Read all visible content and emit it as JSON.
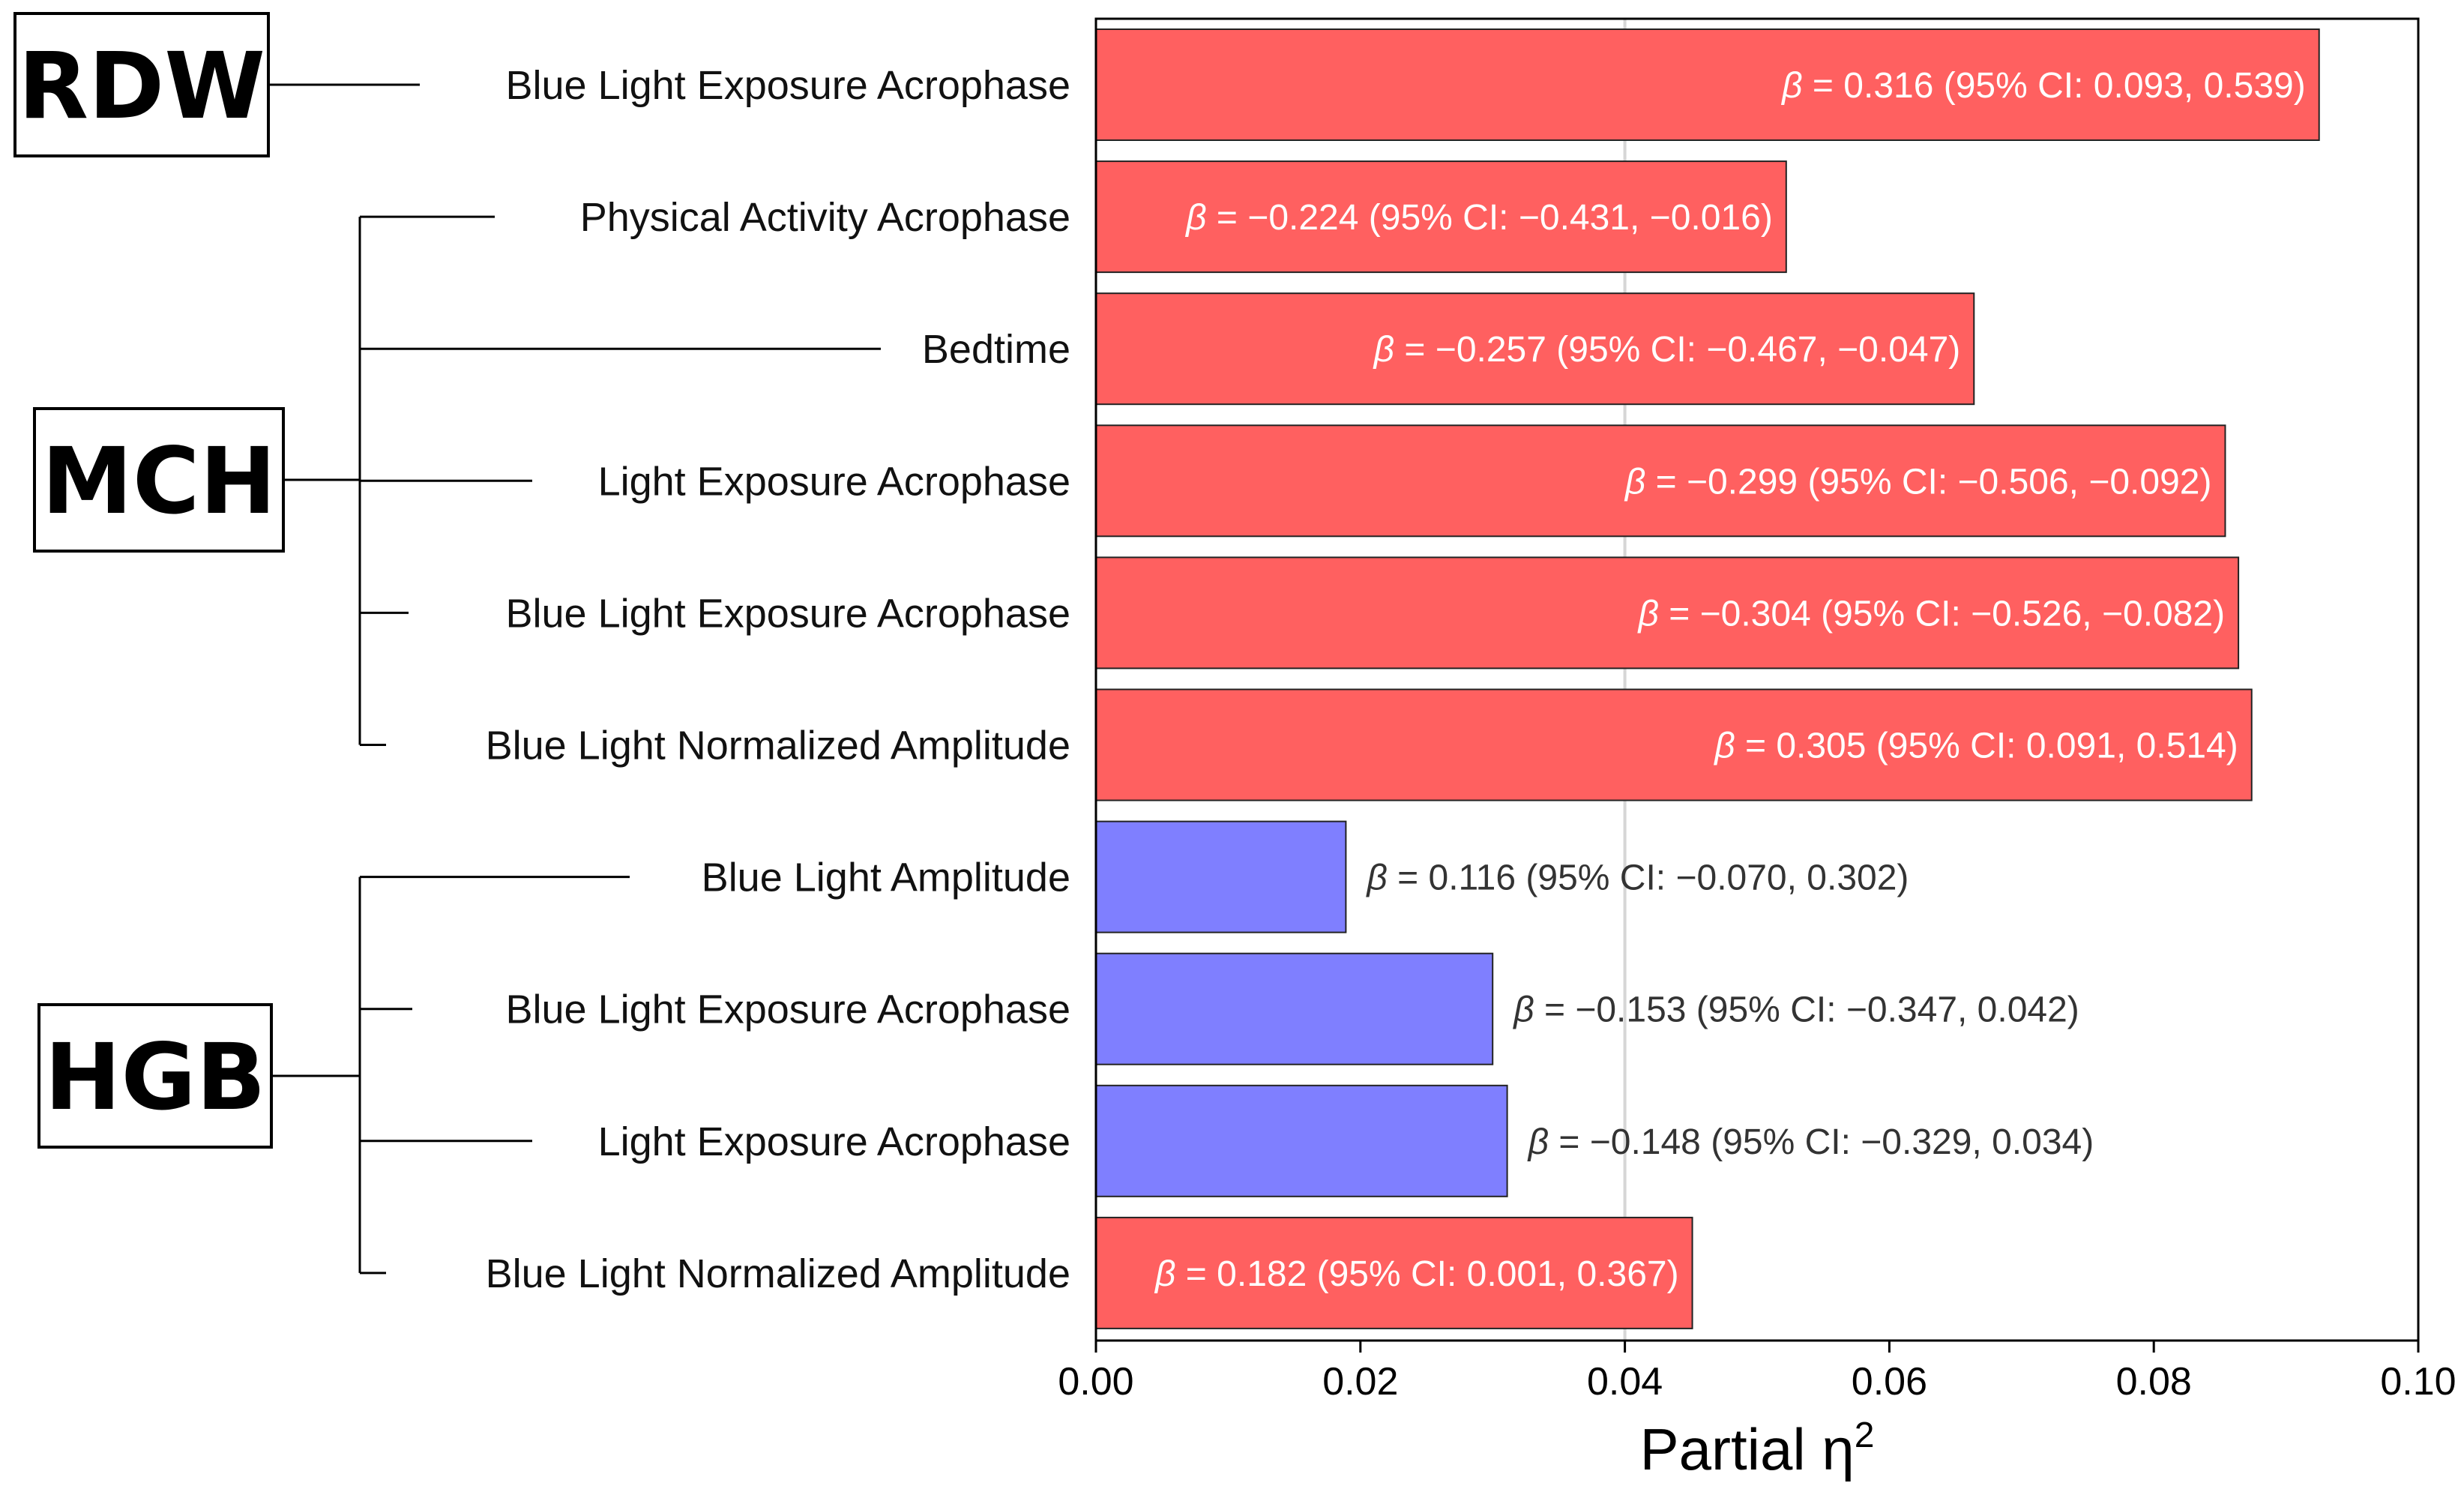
{
  "chart_data": {
    "type": "bar",
    "orientation": "horizontal",
    "xlabel": "Partial η²",
    "xlabel_base": "Partial η",
    "xlabel_sup": "2",
    "xlim": [
      0.0,
      0.1
    ],
    "xticks": [
      "0.00",
      "0.02",
      "0.04",
      "0.06",
      "0.08",
      "0.10"
    ],
    "reference_line": 0.04,
    "beta_symbol": "β",
    "colors": {
      "positive_sig": "#ff6060",
      "nonsig": "#7f7fff"
    },
    "groups": [
      {
        "name": "RDW",
        "rows": [
          0
        ]
      },
      {
        "name": "MCH",
        "rows": [
          1,
          2,
          3,
          4,
          5
        ]
      },
      {
        "name": "HGB",
        "rows": [
          6,
          7,
          8,
          9
        ]
      }
    ],
    "rows": [
      {
        "group": "RDW",
        "label": "Blue Light Exposure Acrophase",
        "value": 0.0925,
        "color": "red",
        "annotation": " = 0.316 (95% CI: 0.093, 0.539)"
      },
      {
        "group": "MCH",
        "label": "Physical Activity Acrophase",
        "value": 0.0522,
        "color": "red",
        "annotation": " = −0.224 (95% CI: −0.431, −0.016)"
      },
      {
        "group": "MCH",
        "label": "Bedtime",
        "value": 0.0664,
        "color": "red",
        "annotation": " = −0.257 (95% CI: −0.467, −0.047)"
      },
      {
        "group": "MCH",
        "label": "Light Exposure Acrophase",
        "value": 0.0854,
        "color": "red",
        "annotation": " = −0.299 (95% CI: −0.506, −0.092)"
      },
      {
        "group": "MCH",
        "label": "Blue Light Exposure Acrophase",
        "value": 0.0864,
        "color": "red",
        "annotation": " = −0.304 (95% CI: −0.526, −0.082)"
      },
      {
        "group": "MCH",
        "label": "Blue Light Normalized Amplitude",
        "value": 0.0874,
        "color": "red",
        "annotation": " = 0.305 (95% CI: 0.091, 0.514)"
      },
      {
        "group": "HGB",
        "label": "Blue Light Amplitude",
        "value": 0.0189,
        "color": "blue",
        "annotation": " = 0.116 (95% CI: −0.070, 0.302)"
      },
      {
        "group": "HGB",
        "label": "Blue Light Exposure Acrophase",
        "value": 0.03,
        "color": "blue",
        "annotation": " = −0.153 (95% CI: −0.347, 0.042)"
      },
      {
        "group": "HGB",
        "label": "Light Exposure Acrophase",
        "value": 0.0311,
        "color": "blue",
        "annotation": " = −0.148 (95% CI: −0.329, 0.034)"
      },
      {
        "group": "HGB",
        "label": "Blue Light Normalized Amplitude",
        "value": 0.0451,
        "color": "red",
        "annotation": " = 0.182 (95% CI: 0.001, 0.367)"
      }
    ]
  }
}
